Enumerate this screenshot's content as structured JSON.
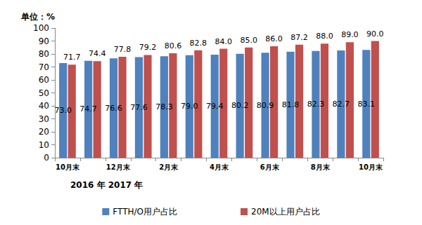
{
  "chart_data": {
    "type": "bar",
    "y_label": "单位：%",
    "categories": [
      "10月末",
      null,
      "12月末",
      null,
      "2月末",
      null,
      "4月末",
      null,
      "6月末",
      null,
      "8月末",
      null,
      "10月末"
    ],
    "annotations": [
      "2016 年 2017 年"
    ],
    "series": [
      {
        "name": "FTTH/O用户占比",
        "color": "#4f81bd",
        "values": [
          73.0,
          74.7,
          76.6,
          77.6,
          78.3,
          79.0,
          79.4,
          80.2,
          80.9,
          81.8,
          82.3,
          82.7,
          83.1
        ],
        "value_labels": [
          "73.0",
          "74.7",
          "76.6",
          "77.6",
          "78.3",
          "79.0",
          "79.4",
          "80.2",
          "80.9",
          "81.8",
          "82.3",
          "82.7",
          "83.1"
        ]
      },
      {
        "name": "20M以上用户占比",
        "color": "#c0504d",
        "values": [
          71.7,
          74.4,
          77.8,
          79.2,
          80.6,
          82.8,
          84.0,
          85.0,
          86.0,
          87.2,
          88.0,
          89.0,
          90.0
        ],
        "value_labels": [
          "71.7",
          "74.4",
          "77.8",
          "79.2",
          "80.6",
          "82.8",
          "84.0",
          "85.0",
          "86.0",
          "87.2",
          "88.0",
          "89.0",
          "90.0"
        ]
      }
    ],
    "ylim": [
      0,
      100
    ],
    "yticks": [
      0,
      10,
      20,
      30,
      40,
      50,
      60,
      70,
      80,
      90,
      100
    ],
    "grid": false,
    "legend": "bottom",
    "data_labels": true
  }
}
